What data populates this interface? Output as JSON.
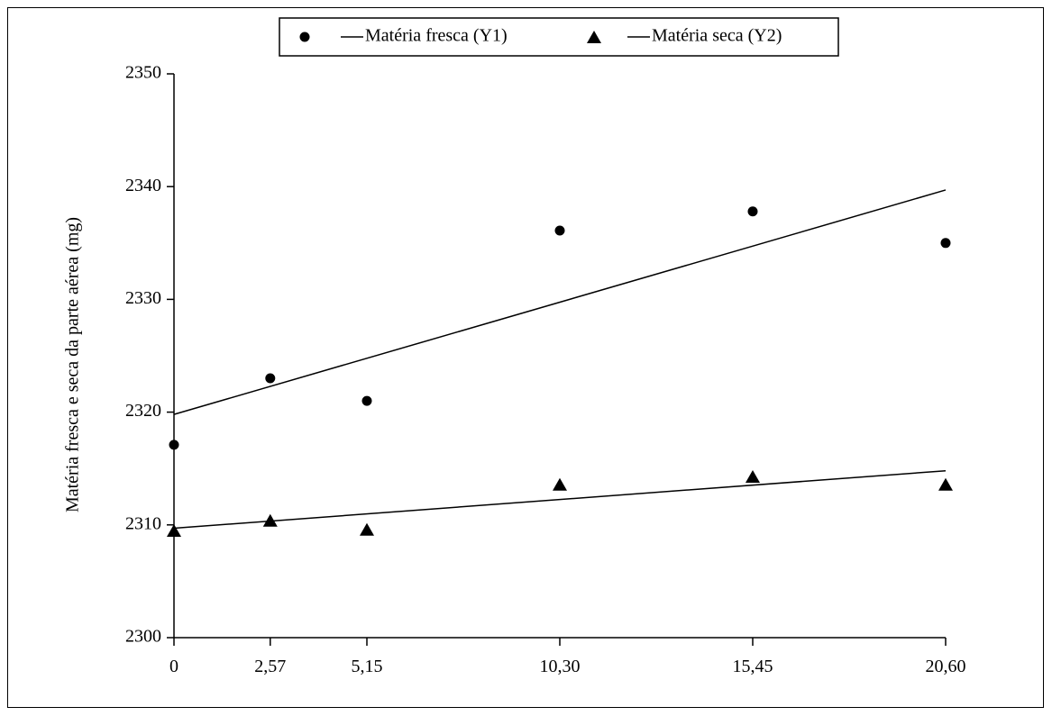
{
  "chart_data": {
    "type": "scatter",
    "title": "",
    "xlabel": "",
    "ylabel": "Matéria fresca e seca da parte aérea (mg)",
    "x": [
      0,
      2.57,
      5.15,
      10.3,
      15.45,
      20.6
    ],
    "x_tick_labels": [
      "0",
      "2,57",
      "5,15",
      "10,30",
      "15,45",
      "20,60"
    ],
    "y_tick_values": [
      2300,
      2310,
      2320,
      2330,
      2340,
      2350
    ],
    "y_tick_labels": [
      "2300",
      "2310",
      "2320",
      "2330",
      "2340",
      "2350"
    ],
    "ylim": [
      2300,
      2350
    ],
    "xlim": [
      0,
      20.6
    ],
    "grid": false,
    "legend_position": "top-center",
    "series": [
      {
        "name": "Matéria fresca (Y1)",
        "marker": "circle",
        "points": [
          2317.1,
          2323.0,
          2321.0,
          2336.1,
          2337.8,
          2335.0
        ],
        "fit": [
          2319.8,
          2339.7
        ]
      },
      {
        "name": "Matéria seca (Y2)",
        "marker": "triangle",
        "points": [
          2309.5,
          2310.4,
          2309.6,
          2313.6,
          2314.3,
          2313.6
        ],
        "fit": [
          2309.7,
          2314.8
        ]
      }
    ],
    "colors": {
      "ink": "#000000",
      "background": "#ffffff"
    }
  }
}
